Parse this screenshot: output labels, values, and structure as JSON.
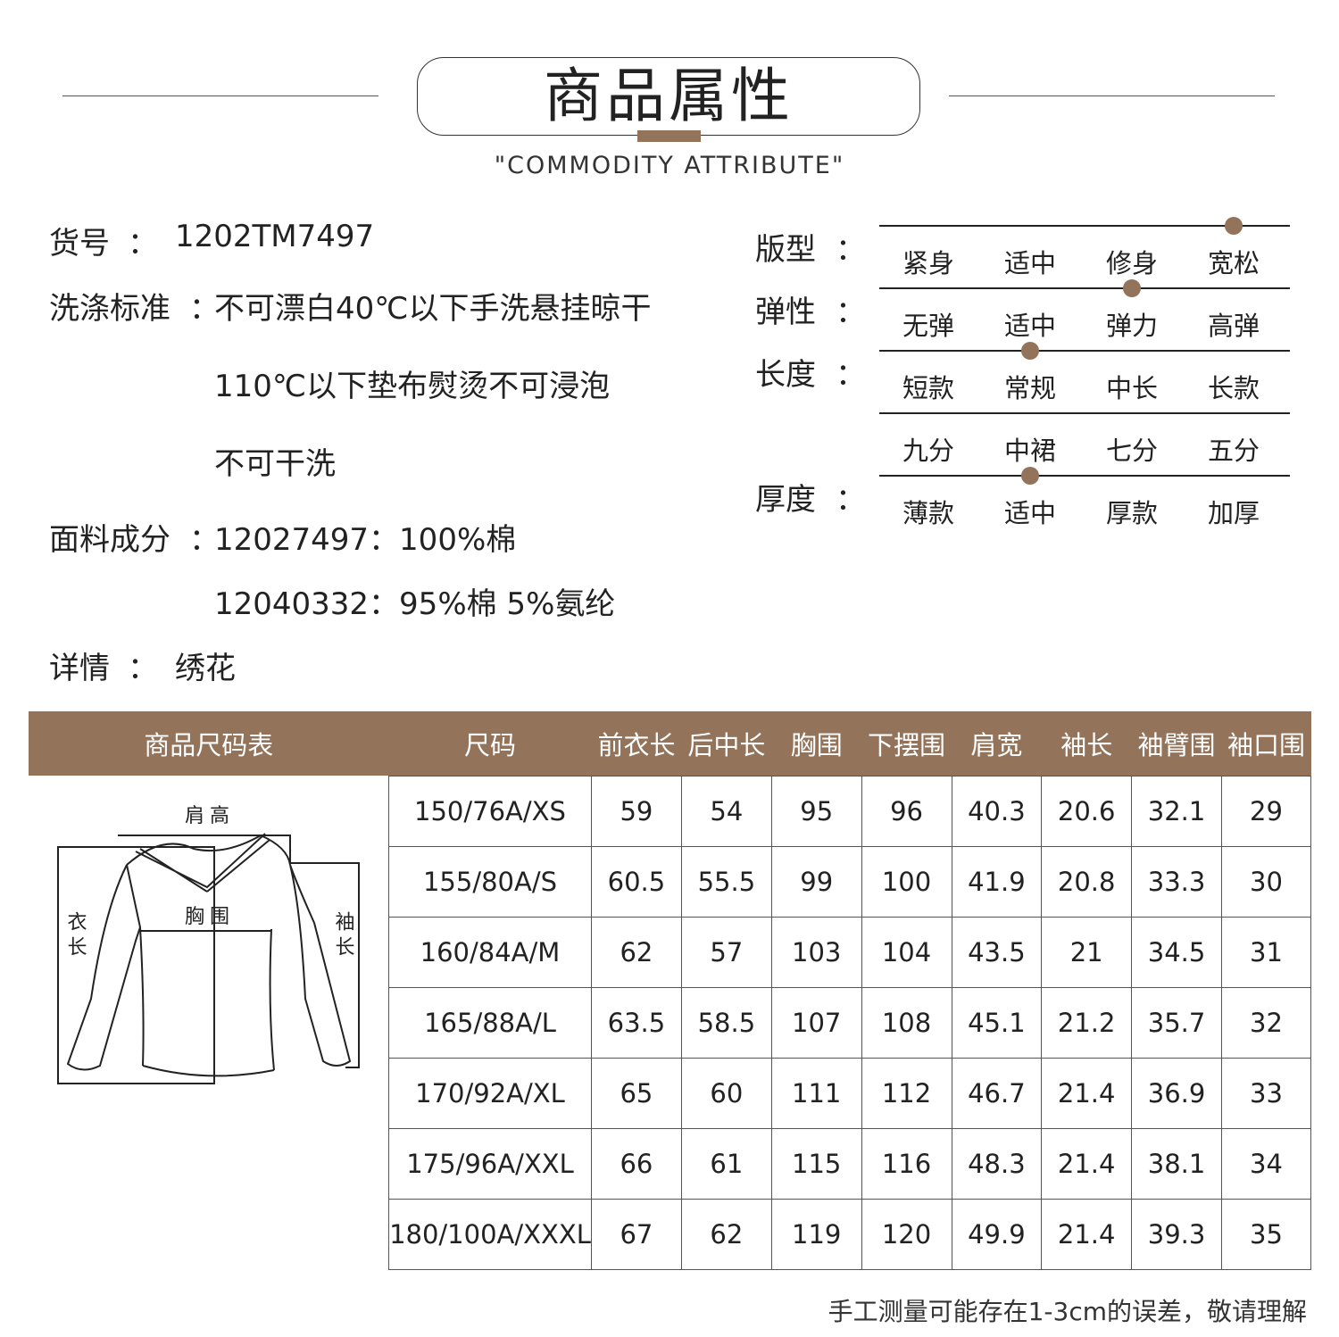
{
  "header": {
    "title": "商品属性",
    "subtitle": "\"COMMODITY ATTRIBUTE\""
  },
  "info": {
    "item_no": {
      "label": "货号",
      "sep": "：",
      "value": "1202TM7497"
    },
    "wash": {
      "label": "洗涤标准",
      "sep": "：",
      "lines": [
        "不可漂白40℃以下手洗悬挂晾干",
        "110℃以下垫布熨烫不可浸泡",
        "不可干洗"
      ]
    },
    "fabric": {
      "label": "面料成分",
      "sep": "：",
      "lines": [
        "12027497：100%棉",
        "12040332：95%棉 5%氨纶"
      ]
    },
    "detail": {
      "label": "详情",
      "sep": "：",
      "value": "绣花"
    }
  },
  "attributes": {
    "accent": "#93735a",
    "fit": {
      "label": "版型",
      "sep": "：",
      "options": [
        "紧身",
        "适中",
        "修身",
        "宽松"
      ],
      "selected": "宽松"
    },
    "elastic": {
      "label": "弹性",
      "sep": "：",
      "options": [
        "无弹",
        "适中",
        "弹力",
        "高弹"
      ],
      "selected": "弹力"
    },
    "length": {
      "label": "长度",
      "sep": "：",
      "options": [
        "短款",
        "常规",
        "中长",
        "长款"
      ],
      "options2": [
        "九分",
        "中裙",
        "七分",
        "五分"
      ],
      "selected": "常规"
    },
    "thickness": {
      "label": "厚度",
      "sep": "：",
      "options": [
        "薄款",
        "适中",
        "厚款",
        "加厚"
      ],
      "selected": "适中"
    }
  },
  "size_table": {
    "headers": [
      "商品尺码表",
      "尺码",
      "前衣长",
      "后中长",
      "胸围",
      "下摆围",
      "肩宽",
      "袖长",
      "袖臂围",
      "袖口围"
    ],
    "diagram_labels": {
      "shoulder": "肩高",
      "chest": "胸围",
      "length": "衣长",
      "sleeve": "袖长"
    },
    "rows": [
      [
        "150/76A/XS",
        "59",
        "54",
        "95",
        "96",
        "40.3",
        "20.6",
        "32.1",
        "29"
      ],
      [
        "155/80A/S",
        "60.5",
        "55.5",
        "99",
        "100",
        "41.9",
        "20.8",
        "33.3",
        "30"
      ],
      [
        "160/84A/M",
        "62",
        "57",
        "103",
        "104",
        "43.5",
        "21",
        "34.5",
        "31"
      ],
      [
        "165/88A/L",
        "63.5",
        "58.5",
        "107",
        "108",
        "45.1",
        "21.2",
        "35.7",
        "32"
      ],
      [
        "170/92A/XL",
        "65",
        "60",
        "111",
        "112",
        "46.7",
        "21.4",
        "36.9",
        "33"
      ],
      [
        "175/96A/XXL",
        "66",
        "61",
        "115",
        "116",
        "48.3",
        "21.4",
        "38.1",
        "34"
      ],
      [
        "180/100A/XXXL",
        "67",
        "62",
        "119",
        "120",
        "49.9",
        "21.4",
        "39.3",
        "35"
      ]
    ]
  },
  "note": "手工测量可能存在1-3cm的误差，敬请理解"
}
